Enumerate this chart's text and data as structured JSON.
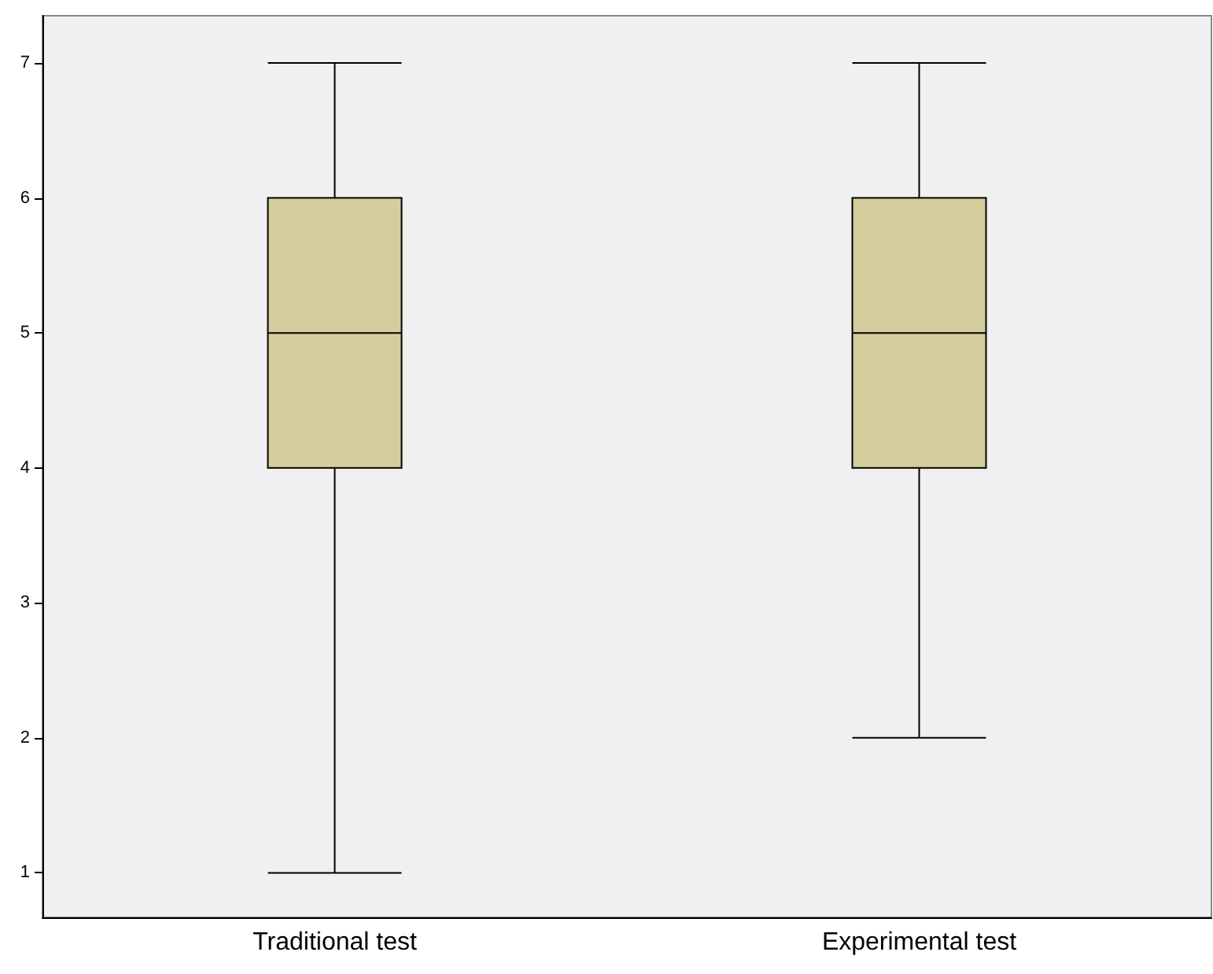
{
  "chart_data": {
    "type": "box",
    "categories": [
      "Traditional test",
      "Experimental test"
    ],
    "boxes": [
      {
        "low": 1,
        "q1": 4,
        "median": 5,
        "q3": 6,
        "high": 7
      },
      {
        "low": 2,
        "q1": 4,
        "median": 5,
        "q3": 6,
        "high": 7
      }
    ],
    "color": "#d3ce9b",
    "ylim": [
      0.67,
      7.35
    ],
    "yticks": [
      1,
      2,
      3,
      4,
      5,
      6,
      7
    ],
    "grid": false
  }
}
